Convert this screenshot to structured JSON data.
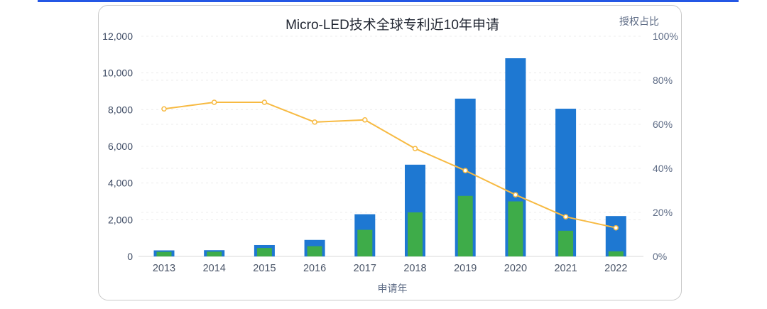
{
  "page": {
    "accent_color": "#2457e5"
  },
  "chart_data": {
    "type": "bar",
    "title": "Micro-LED技术全球专利近10年申请",
    "xlabel": "申请年",
    "right_axis_label": "授权占比",
    "legend": "none",
    "grid": true,
    "categories": [
      "2013",
      "2014",
      "2015",
      "2016",
      "2017",
      "2018",
      "2019",
      "2020",
      "2021",
      "2022"
    ],
    "series": [
      {
        "id": "total-applications-bar",
        "type": "bar",
        "axis": "left",
        "color": "#1e78d2",
        "values": [
          330,
          340,
          620,
          900,
          2300,
          5000,
          8600,
          10800,
          8050,
          2200
        ]
      },
      {
        "id": "granted-bar",
        "type": "bar",
        "axis": "left",
        "color": "#3eac49",
        "values": [
          250,
          260,
          460,
          560,
          1450,
          2400,
          3300,
          3000,
          1400,
          280
        ]
      },
      {
        "id": "grant-ratio-line",
        "type": "line",
        "axis": "right",
        "color": "#f7ba42",
        "marker_fill": "#ffffff",
        "values": [
          67,
          70,
          70,
          61,
          62,
          49,
          39,
          28,
          18,
          13
        ]
      }
    ],
    "left_axis": {
      "min": 0,
      "max": 12000,
      "ticks": [
        {
          "label": "0",
          "value": 0
        },
        {
          "label": "2,000",
          "value": 2000
        },
        {
          "label": "4,000",
          "value": 4000
        },
        {
          "label": "6,000",
          "value": 6000
        },
        {
          "label": "8,000",
          "value": 8000
        },
        {
          "label": "10,000",
          "value": 10000
        },
        {
          "label": "12,000",
          "value": 12000
        }
      ]
    },
    "right_axis": {
      "min": 0,
      "max": 100,
      "unit": "%",
      "ticks": [
        {
          "label": "0%",
          "value": 0
        },
        {
          "label": "20%",
          "value": 20
        },
        {
          "label": "40%",
          "value": 40
        },
        {
          "label": "60%",
          "value": 60
        },
        {
          "label": "80%",
          "value": 80
        },
        {
          "label": "100%",
          "value": 100
        }
      ]
    },
    "style": {
      "gridline_color": "#ececec",
      "baseline_color": "#d9d9d9",
      "left_tick_color": "#3d4a63",
      "right_tick_color": "#5d6b85",
      "year_tick_color": "#4a5568"
    }
  }
}
